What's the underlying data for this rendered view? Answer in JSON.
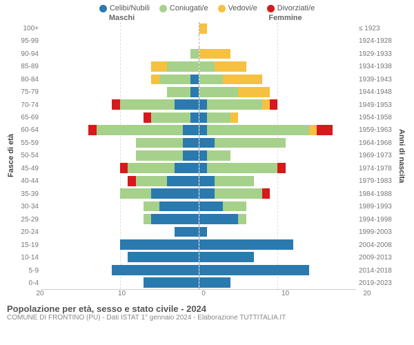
{
  "legend": [
    {
      "label": "Celibi/Nubili",
      "color": "#2a7ab0"
    },
    {
      "label": "Coniugati/e",
      "color": "#a6d18a"
    },
    {
      "label": "Vedovi/e",
      "color": "#f6c141"
    },
    {
      "label": "Divorziati/e",
      "color": "#d7191c"
    }
  ],
  "chart": {
    "type": "population-pyramid",
    "male_label": "Maschi",
    "female_label": "Femmine",
    "yaxis_left_title": "Fasce di età",
    "yaxis_right_title": "Anni di nascita",
    "xmax": 20,
    "xticks": [
      20,
      10,
      0,
      10,
      20
    ],
    "colors": {
      "celibi": "#2a7ab0",
      "coniugati": "#a6d18a",
      "vedovi": "#f6c141",
      "divorziati": "#d7191c"
    },
    "rows": [
      {
        "age": "100+",
        "year": "≤ 1923",
        "m": {
          "c": 0,
          "k": 0,
          "v": 0,
          "d": 0
        },
        "f": {
          "c": 0,
          "k": 0,
          "v": 1,
          "d": 0
        }
      },
      {
        "age": "95-99",
        "year": "1924-1928",
        "m": {
          "c": 0,
          "k": 0,
          "v": 0,
          "d": 0
        },
        "f": {
          "c": 0,
          "k": 0,
          "v": 0,
          "d": 0
        }
      },
      {
        "age": "90-94",
        "year": "1929-1933",
        "m": {
          "c": 0,
          "k": 1,
          "v": 0,
          "d": 0
        },
        "f": {
          "c": 0,
          "k": 0,
          "v": 4,
          "d": 0
        }
      },
      {
        "age": "85-89",
        "year": "1934-1938",
        "m": {
          "c": 0,
          "k": 4,
          "v": 2,
          "d": 0
        },
        "f": {
          "c": 0,
          "k": 2,
          "v": 4,
          "d": 0
        }
      },
      {
        "age": "80-84",
        "year": "1939-1943",
        "m": {
          "c": 1,
          "k": 4,
          "v": 1,
          "d": 0
        },
        "f": {
          "c": 0,
          "k": 3,
          "v": 5,
          "d": 0
        }
      },
      {
        "age": "75-79",
        "year": "1944-1948",
        "m": {
          "c": 1,
          "k": 3,
          "v": 0,
          "d": 0
        },
        "f": {
          "c": 0,
          "k": 5,
          "v": 4,
          "d": 0
        }
      },
      {
        "age": "70-74",
        "year": "1949-1953",
        "m": {
          "c": 3,
          "k": 7,
          "v": 0,
          "d": 1
        },
        "f": {
          "c": 1,
          "k": 7,
          "v": 1,
          "d": 1
        }
      },
      {
        "age": "65-69",
        "year": "1954-1958",
        "m": {
          "c": 1,
          "k": 5,
          "v": 0,
          "d": 1
        },
        "f": {
          "c": 1,
          "k": 3,
          "v": 1,
          "d": 0
        }
      },
      {
        "age": "60-64",
        "year": "1959-1963",
        "m": {
          "c": 2,
          "k": 11,
          "v": 0,
          "d": 1
        },
        "f": {
          "c": 1,
          "k": 13,
          "v": 1,
          "d": 2
        }
      },
      {
        "age": "55-59",
        "year": "1964-1968",
        "m": {
          "c": 2,
          "k": 6,
          "v": 0,
          "d": 0
        },
        "f": {
          "c": 2,
          "k": 9,
          "v": 0,
          "d": 0
        }
      },
      {
        "age": "50-54",
        "year": "1969-1973",
        "m": {
          "c": 2,
          "k": 6,
          "v": 0,
          "d": 0
        },
        "f": {
          "c": 1,
          "k": 3,
          "v": 0,
          "d": 0
        }
      },
      {
        "age": "45-49",
        "year": "1974-1978",
        "m": {
          "c": 3,
          "k": 6,
          "v": 0,
          "d": 1
        },
        "f": {
          "c": 1,
          "k": 9,
          "v": 0,
          "d": 1
        }
      },
      {
        "age": "40-44",
        "year": "1979-1983",
        "m": {
          "c": 4,
          "k": 4,
          "v": 0,
          "d": 1
        },
        "f": {
          "c": 2,
          "k": 5,
          "v": 0,
          "d": 0
        }
      },
      {
        "age": "35-39",
        "year": "1984-1988",
        "m": {
          "c": 6,
          "k": 4,
          "v": 0,
          "d": 0
        },
        "f": {
          "c": 2,
          "k": 6,
          "v": 0,
          "d": 1
        }
      },
      {
        "age": "30-34",
        "year": "1989-1993",
        "m": {
          "c": 5,
          "k": 2,
          "v": 0,
          "d": 0
        },
        "f": {
          "c": 3,
          "k": 3,
          "v": 0,
          "d": 0
        }
      },
      {
        "age": "25-29",
        "year": "1994-1998",
        "m": {
          "c": 6,
          "k": 1,
          "v": 0,
          "d": 0
        },
        "f": {
          "c": 5,
          "k": 1,
          "v": 0,
          "d": 0
        }
      },
      {
        "age": "20-24",
        "year": "1999-2003",
        "m": {
          "c": 3,
          "k": 0,
          "v": 0,
          "d": 0
        },
        "f": {
          "c": 1,
          "k": 0,
          "v": 0,
          "d": 0
        }
      },
      {
        "age": "15-19",
        "year": "2004-2008",
        "m": {
          "c": 10,
          "k": 0,
          "v": 0,
          "d": 0
        },
        "f": {
          "c": 12,
          "k": 0,
          "v": 0,
          "d": 0
        }
      },
      {
        "age": "10-14",
        "year": "2009-2013",
        "m": {
          "c": 9,
          "k": 0,
          "v": 0,
          "d": 0
        },
        "f": {
          "c": 7,
          "k": 0,
          "v": 0,
          "d": 0
        }
      },
      {
        "age": "5-9",
        "year": "2014-2018",
        "m": {
          "c": 11,
          "k": 0,
          "v": 0,
          "d": 0
        },
        "f": {
          "c": 14,
          "k": 0,
          "v": 0,
          "d": 0
        }
      },
      {
        "age": "0-4",
        "year": "2019-2023",
        "m": {
          "c": 7,
          "k": 0,
          "v": 0,
          "d": 0
        },
        "f": {
          "c": 4,
          "k": 0,
          "v": 0,
          "d": 0
        }
      }
    ]
  },
  "footer": {
    "title": "Popolazione per età, sesso e stato civile - 2024",
    "subtitle": "COMUNE DI FRONTINO (PU) - Dati ISTAT 1° gennaio 2024 - Elaborazione TUTTITALIA.IT"
  }
}
